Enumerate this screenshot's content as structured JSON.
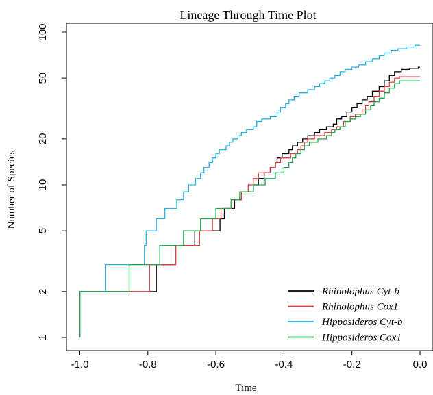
{
  "chart_data": {
    "type": "line",
    "title": "Lineage Through Time Plot",
    "xlabel": "Time",
    "ylabel": "Number of Species",
    "xlim": [
      -1.0,
      0.0
    ],
    "ylim": [
      1,
      100
    ],
    "y_scale": "log",
    "x_ticks": [
      "-1.0",
      "-0.8",
      "-0.6",
      "-0.4",
      "-0.2",
      "0.0"
    ],
    "x_tick_values": [
      -1.0,
      -0.8,
      -0.6,
      -0.4,
      -0.2,
      0.0
    ],
    "y_ticks": [
      "1",
      "2",
      "5",
      "10",
      "20",
      "50",
      "100"
    ],
    "y_tick_values": [
      1,
      2,
      5,
      10,
      20,
      50,
      100
    ],
    "grid": false,
    "legend_position": "bottom-right",
    "series": [
      {
        "name": "Rhinolophus Cyt-b",
        "color": "#000000",
        "steps": [
          [
            -1.0,
            1
          ],
          [
            -1.0,
            2
          ],
          [
            -0.775,
            3
          ],
          [
            -0.718,
            4
          ],
          [
            -0.662,
            5
          ],
          [
            -0.588,
            6
          ],
          [
            -0.575,
            7
          ],
          [
            -0.545,
            8
          ],
          [
            -0.525,
            9
          ],
          [
            -0.49,
            10
          ],
          [
            -0.475,
            11
          ],
          [
            -0.458,
            12
          ],
          [
            -0.44,
            13
          ],
          [
            -0.425,
            14
          ],
          [
            -0.42,
            15
          ],
          [
            -0.405,
            16
          ],
          [
            -0.385,
            17
          ],
          [
            -0.375,
            18
          ],
          [
            -0.36,
            19
          ],
          [
            -0.345,
            20
          ],
          [
            -0.33,
            21
          ],
          [
            -0.31,
            22
          ],
          [
            -0.295,
            23
          ],
          [
            -0.275,
            24
          ],
          [
            -0.255,
            25
          ],
          [
            -0.245,
            27
          ],
          [
            -0.23,
            28
          ],
          [
            -0.215,
            30
          ],
          [
            -0.2,
            32
          ],
          [
            -0.185,
            34
          ],
          [
            -0.17,
            36
          ],
          [
            -0.155,
            38
          ],
          [
            -0.14,
            41
          ],
          [
            -0.12,
            44
          ],
          [
            -0.105,
            48
          ],
          [
            -0.09,
            52
          ],
          [
            -0.075,
            55
          ],
          [
            -0.055,
            57
          ],
          [
            -0.03,
            58
          ],
          [
            -0.005,
            59
          ]
        ]
      },
      {
        "name": "Rhinolophus Cox1",
        "color": "#e03a3a",
        "steps": [
          [
            -1.0,
            1
          ],
          [
            -1.0,
            2
          ],
          [
            -0.795,
            3
          ],
          [
            -0.718,
            4
          ],
          [
            -0.648,
            5
          ],
          [
            -0.61,
            6
          ],
          [
            -0.585,
            7
          ],
          [
            -0.555,
            8
          ],
          [
            -0.525,
            9
          ],
          [
            -0.505,
            10
          ],
          [
            -0.49,
            11
          ],
          [
            -0.475,
            12
          ],
          [
            -0.44,
            13
          ],
          [
            -0.425,
            14
          ],
          [
            -0.41,
            15
          ],
          [
            -0.38,
            16
          ],
          [
            -0.36,
            17
          ],
          [
            -0.35,
            18
          ],
          [
            -0.34,
            19
          ],
          [
            -0.33,
            20
          ],
          [
            -0.31,
            21
          ],
          [
            -0.28,
            22
          ],
          [
            -0.26,
            23
          ],
          [
            -0.245,
            24
          ],
          [
            -0.225,
            26
          ],
          [
            -0.205,
            28
          ],
          [
            -0.19,
            29
          ],
          [
            -0.17,
            31
          ],
          [
            -0.16,
            33
          ],
          [
            -0.15,
            35
          ],
          [
            -0.135,
            38
          ],
          [
            -0.12,
            41
          ],
          [
            -0.105,
            44
          ],
          [
            -0.09,
            47
          ],
          [
            -0.075,
            50
          ],
          [
            -0.06,
            51
          ]
        ]
      },
      {
        "name": "Hipposideros Cyt-b",
        "color": "#1fb4e8",
        "steps": [
          [
            -1.0,
            1
          ],
          [
            -1.0,
            2
          ],
          [
            -0.925,
            3
          ],
          [
            -0.81,
            4
          ],
          [
            -0.805,
            5
          ],
          [
            -0.775,
            6
          ],
          [
            -0.75,
            7
          ],
          [
            -0.715,
            8
          ],
          [
            -0.695,
            9
          ],
          [
            -0.68,
            10
          ],
          [
            -0.66,
            11
          ],
          [
            -0.645,
            12
          ],
          [
            -0.635,
            13
          ],
          [
            -0.62,
            14
          ],
          [
            -0.61,
            15
          ],
          [
            -0.6,
            16
          ],
          [
            -0.59,
            17
          ],
          [
            -0.57,
            18
          ],
          [
            -0.56,
            19
          ],
          [
            -0.55,
            20
          ],
          [
            -0.535,
            21
          ],
          [
            -0.525,
            22
          ],
          [
            -0.51,
            23
          ],
          [
            -0.49,
            24
          ],
          [
            -0.48,
            26
          ],
          [
            -0.465,
            27
          ],
          [
            -0.44,
            28
          ],
          [
            -0.42,
            30
          ],
          [
            -0.41,
            32
          ],
          [
            -0.395,
            34
          ],
          [
            -0.385,
            36
          ],
          [
            -0.37,
            38
          ],
          [
            -0.355,
            40
          ],
          [
            -0.33,
            42
          ],
          [
            -0.31,
            44
          ],
          [
            -0.295,
            46
          ],
          [
            -0.28,
            48
          ],
          [
            -0.265,
            50
          ],
          [
            -0.25,
            52
          ],
          [
            -0.235,
            55
          ],
          [
            -0.22,
            57
          ],
          [
            -0.2,
            59
          ],
          [
            -0.18,
            61
          ],
          [
            -0.16,
            64
          ],
          [
            -0.14,
            67
          ],
          [
            -0.12,
            70
          ],
          [
            -0.105,
            73
          ],
          [
            -0.085,
            76
          ],
          [
            -0.065,
            78
          ],
          [
            -0.04,
            80
          ],
          [
            -0.015,
            82
          ]
        ]
      },
      {
        "name": "Hipposideros Cox1",
        "color": "#1fa64a",
        "steps": [
          [
            -1.0,
            1
          ],
          [
            -1.0,
            2
          ],
          [
            -0.855,
            3
          ],
          [
            -0.765,
            4
          ],
          [
            -0.695,
            5
          ],
          [
            -0.645,
            6
          ],
          [
            -0.6,
            7
          ],
          [
            -0.555,
            8
          ],
          [
            -0.53,
            9
          ],
          [
            -0.49,
            10
          ],
          [
            -0.455,
            11
          ],
          [
            -0.425,
            12
          ],
          [
            -0.4,
            13
          ],
          [
            -0.385,
            14
          ],
          [
            -0.375,
            15
          ],
          [
            -0.365,
            16
          ],
          [
            -0.35,
            17
          ],
          [
            -0.34,
            18
          ],
          [
            -0.325,
            19
          ],
          [
            -0.3,
            20
          ],
          [
            -0.275,
            21
          ],
          [
            -0.26,
            22
          ],
          [
            -0.25,
            23
          ],
          [
            -0.235,
            24
          ],
          [
            -0.22,
            26
          ],
          [
            -0.205,
            27
          ],
          [
            -0.19,
            28
          ],
          [
            -0.175,
            29
          ],
          [
            -0.16,
            31
          ],
          [
            -0.145,
            33
          ],
          [
            -0.135,
            35
          ],
          [
            -0.12,
            37
          ],
          [
            -0.105,
            40
          ],
          [
            -0.09,
            43
          ],
          [
            -0.075,
            46
          ],
          [
            -0.06,
            48
          ]
        ]
      }
    ]
  }
}
